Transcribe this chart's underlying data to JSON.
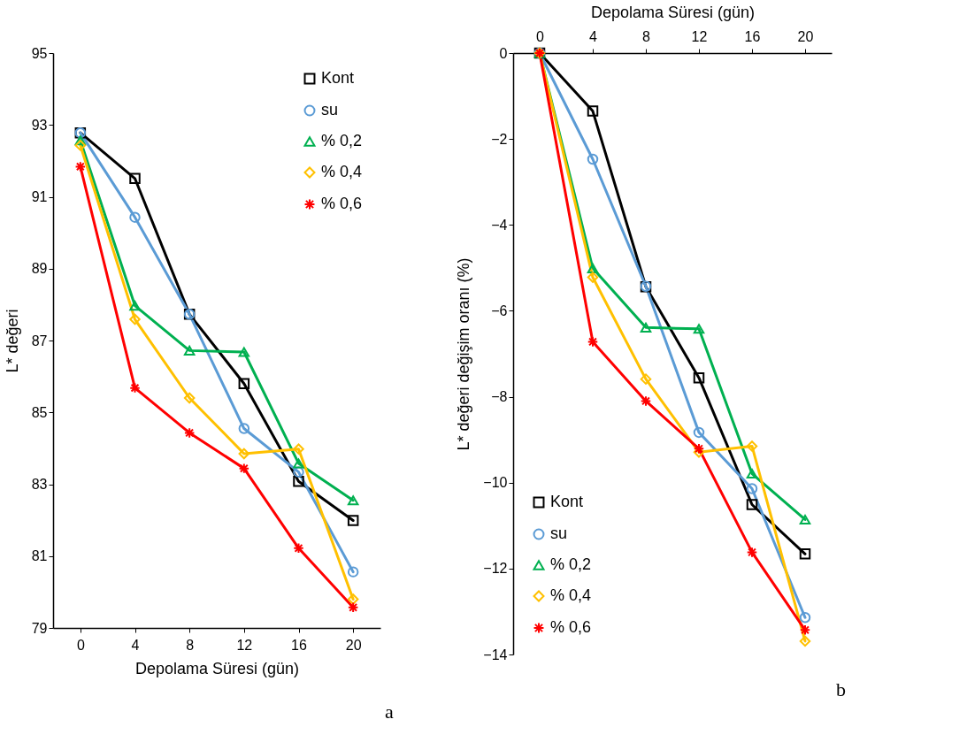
{
  "chart_data": [
    {
      "type": "line",
      "categories": [
        "0",
        "4",
        "8",
        "12",
        "16",
        "20"
      ],
      "xlabel": "Depolama Süresi (gün)",
      "ylabel": "L* değeri",
      "ylim": [
        79,
        95
      ],
      "yticks": [
        79,
        81,
        83,
        85,
        87,
        89,
        91,
        93,
        95
      ],
      "grid": false,
      "legend": "top right",
      "annotations": [
        "a"
      ],
      "series": [
        {
          "name": "Kont",
          "color": "#000000",
          "marker": "square",
          "values": [
            92.78,
            91.51,
            87.73,
            85.8,
            83.08,
            81.99
          ]
        },
        {
          "name": "su",
          "color": "#5b9bd5",
          "marker": "circle",
          "values": [
            92.78,
            90.43,
            87.73,
            84.55,
            83.34,
            80.56
          ]
        },
        {
          "name": "% 0,2",
          "color": "#00b050",
          "marker": "triangle",
          "values": [
            92.57,
            87.97,
            86.72,
            86.68,
            83.58,
            82.55
          ]
        },
        {
          "name": "% 0,4",
          "color": "#ffc000",
          "marker": "diamond",
          "values": [
            92.43,
            87.59,
            85.4,
            83.85,
            83.98,
            79.8
          ]
        },
        {
          "name": "% 0,6",
          "color": "#ff0000",
          "marker": "cross",
          "values": [
            91.84,
            85.68,
            84.43,
            83.44,
            81.22,
            79.57
          ]
        }
      ]
    },
    {
      "type": "line",
      "categories": [
        "0",
        "4",
        "8",
        "12",
        "16",
        "20"
      ],
      "x2label": "Depolama Süresi (gün)",
      "ylabel": "L* değeri değişim oranı (%)",
      "ylim": [
        -14,
        0
      ],
      "yticks": [
        -14,
        -12,
        -10,
        -8,
        -6,
        -4,
        -2,
        0
      ],
      "grid": false,
      "legend": "bottom left",
      "annotations": [
        "b"
      ],
      "series": [
        {
          "name": "Kont",
          "color": "#000000",
          "marker": "square",
          "values": [
            0,
            -1.35,
            -5.44,
            -7.56,
            -10.51,
            -11.66
          ]
        },
        {
          "name": "su",
          "color": "#5b9bd5",
          "marker": "circle",
          "values": [
            0,
            -2.47,
            -5.43,
            -8.83,
            -10.14,
            -13.14
          ]
        },
        {
          "name": "% 0,2",
          "color": "#00b050",
          "marker": "triangle",
          "values": [
            0,
            -5.01,
            -6.39,
            -6.42,
            -9.79,
            -10.86
          ]
        },
        {
          "name": "% 0,4",
          "color": "#ffc000",
          "marker": "diamond",
          "values": [
            0,
            -5.22,
            -7.59,
            -9.29,
            -9.15,
            -13.69
          ]
        },
        {
          "name": "% 0,6",
          "color": "#ff0000",
          "marker": "cross",
          "values": [
            0,
            -6.72,
            -8.1,
            -9.21,
            -11.62,
            -13.43
          ]
        }
      ]
    }
  ]
}
